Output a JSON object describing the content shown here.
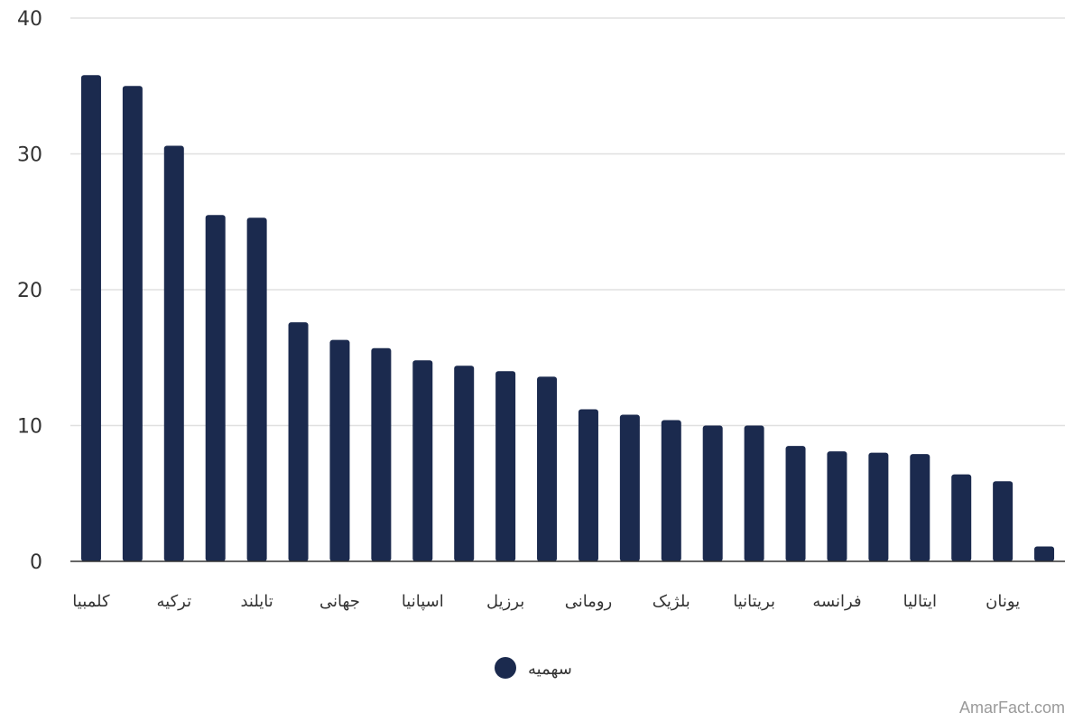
{
  "chart_data": {
    "type": "bar",
    "categories": [
      "کلمبیا",
      "",
      "ترکیه",
      "",
      "تایلند",
      "",
      "جهانی",
      "",
      "اسپانیا",
      "",
      "برزیل",
      "",
      "رومانی",
      "",
      "بلژیک",
      "",
      "بریتانیا",
      "",
      "فرانسه",
      "",
      "ایتالیا",
      "",
      "یونان",
      ""
    ],
    "series": [
      {
        "name": "سهمیه",
        "values": [
          35.8,
          35.0,
          30.6,
          25.5,
          25.3,
          17.6,
          16.3,
          15.7,
          14.8,
          14.4,
          14.0,
          13.6,
          11.2,
          10.8,
          10.4,
          10.0,
          10.0,
          8.5,
          8.1,
          8.0,
          7.9,
          6.4,
          5.9,
          1.1
        ]
      }
    ],
    "ylim": [
      0,
      40
    ],
    "yticks": [
      "0",
      "10",
      "20",
      "30",
      "40"
    ],
    "grid": true,
    "legend_position": "bottom-center",
    "bar_color": "#1b2a4e",
    "grid_color": "#e0e0e0",
    "axis_color": "#333333"
  },
  "watermark": "AmarFact.com"
}
